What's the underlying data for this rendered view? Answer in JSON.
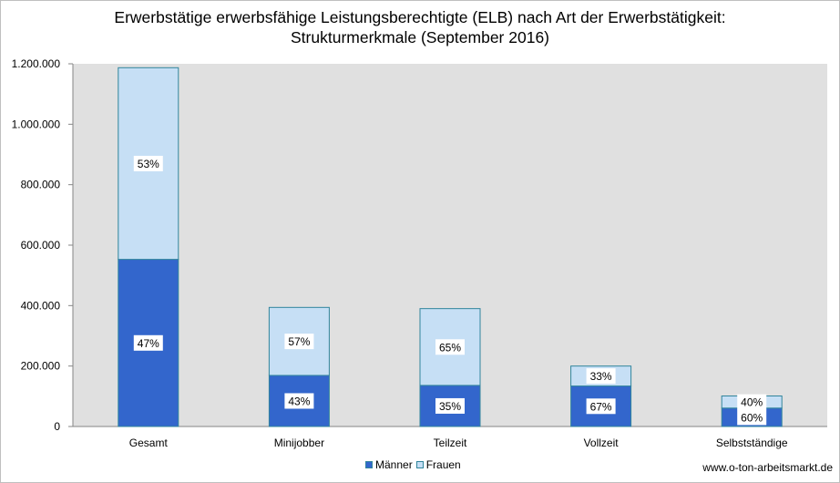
{
  "chart_data": {
    "type": "bar",
    "stacked": true,
    "title_lines": [
      "Erwerbstätige erwerbsfähige Leistungsberechtigte (ELB) nach Art der Erwerbstätigkeit:",
      "Strukturmerkmale (September 2016)"
    ],
    "categories": [
      "Gesamt",
      "Minijobber",
      "Teilzeit",
      "Vollzeit",
      "Selbstständige"
    ],
    "series": [
      {
        "name": "Männer",
        "values": [
          553000,
          169000,
          136000,
          134000,
          61000
        ],
        "labels": [
          "47%",
          "43%",
          "35%",
          "67%",
          "60%"
        ],
        "color": "#3366cc"
      },
      {
        "name": "Frauen",
        "values": [
          634000,
          225000,
          254000,
          66000,
          40000
        ],
        "labels": [
          "53%",
          "57%",
          "65%",
          "33%",
          "40%"
        ],
        "color": "#c6dff5"
      }
    ],
    "ylim": [
      0,
      1200000
    ],
    "yticks": [
      0,
      200000,
      400000,
      600000,
      800000,
      1000000,
      1200000
    ],
    "ytick_labels": [
      "0",
      "200.000",
      "400.000",
      "600.000",
      "800.000",
      "1.000.000",
      "1.200.000"
    ],
    "plot_background": "#e0e0e0",
    "grid": false,
    "legend_position": "bottom"
  },
  "credit": "www.o-ton-arbeitsmarkt.de"
}
